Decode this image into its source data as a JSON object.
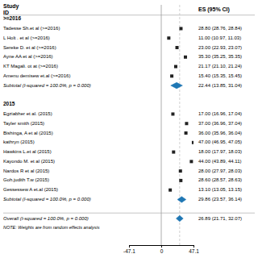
{
  "chart_data": {
    "type": "forest",
    "study_header": "Study\nID",
    "es_header": "ES (95% CI)",
    "xlim": [
      -47.1,
      47.1
    ],
    "xticks": [
      -47.1,
      0,
      47.1
    ],
    "reference_line": 0,
    "groups": [
      {
        "name": ">=2016",
        "studies": [
          {
            "name": "Tadesse Sh.et al (>=2016)",
            "es": 28.8,
            "ci_lo": 28.76,
            "ci_hi": 28.84,
            "es_label": "28.80 (28.76, 28.84)"
          },
          {
            "name": "L Holt . et al (>=2016)",
            "es": 11.0,
            "ci_lo": 10.97,
            "ci_hi": 11.03,
            "es_label": "11.00 (10.97, 11.03)"
          },
          {
            "name": "Sereke D. et al (>=2016)",
            "es": 23.0,
            "ci_lo": 22.93,
            "ci_hi": 23.07,
            "es_label": "23.00 (22.93, 23.07)"
          },
          {
            "name": "Ayne AA et al (>=2016)",
            "es": 35.3,
            "ci_lo": 35.25,
            "ci_hi": 35.35,
            "es_label": "35.30 (35.25, 35.35)"
          },
          {
            "name": "KT Magali. ot at (>=2016)",
            "es": 21.17,
            "ci_lo": 21.1,
            "ci_hi": 21.24,
            "es_label": "21.17 (21.10, 21.24)"
          },
          {
            "name": "Amenu demisew et.al (>=2016)",
            "es": 15.4,
            "ci_lo": 15.35,
            "ci_hi": 15.45,
            "es_label": "15.40 (15.35, 15.45)"
          }
        ],
        "subtotal": {
          "label": "Subtotal  (I-squared = 100.0%, p = 0.000)",
          "es": 22.44,
          "ci_lo": 13.85,
          "ci_hi": 31.04,
          "es_label": "22.44 (13.85, 31.04)"
        }
      },
      {
        "name": "2015",
        "studies": [
          {
            "name": "Egziabher et al. (2015)",
            "es": 17.0,
            "ci_lo": 16.96,
            "ci_hi": 17.04,
            "es_label": "17.00 (16.96, 17.04)"
          },
          {
            "name": "Tayler smith (2015)",
            "es": 37.0,
            "ci_lo": 36.96,
            "ci_hi": 37.04,
            "es_label": "37.00 (36.96, 37.04)"
          },
          {
            "name": "Bishinga, A et al (2015)",
            "es": 36.0,
            "ci_lo": 35.96,
            "ci_hi": 36.04,
            "es_label": "36.00 (35.96, 36.04)"
          },
          {
            "name": "kathryn (2015)",
            "es": 47.0,
            "ci_lo": 46.95,
            "ci_hi": 47.05,
            "es_label": "47.00 (46.95, 47.05)"
          },
          {
            "name": "Hawkins L.et al (2015)",
            "es": 18.0,
            "ci_lo": 17.97,
            "ci_hi": 18.03,
            "es_label": "18.00 (17.97, 18.03)"
          },
          {
            "name": "Kayondo M. et al (2015)",
            "es": 44.0,
            "ci_lo": 43.89,
            "ci_hi": 44.11,
            "es_label": "44.00 (43.89, 44.11)"
          },
          {
            "name": "Nardos R et al (2015)",
            "es": 28.0,
            "ci_lo": 27.97,
            "ci_hi": 28.03,
            "es_label": "28.00 (27.97, 28.03)"
          },
          {
            "name": "Goh.judith T.w (2015)",
            "es": 28.6,
            "ci_lo": 28.57,
            "ci_hi": 28.63,
            "es_label": "28.60 (28.57, 28.63)"
          },
          {
            "name": "Gessessew A et.al (2015)",
            "es": 13.1,
            "ci_lo": 13.05,
            "ci_hi": 13.15,
            "es_label": "13.10 (13.05, 13.15)"
          }
        ],
        "subtotal": {
          "label": "Subtotal  (I-squared = 100.0%, p = 0.000)",
          "es": 29.86,
          "ci_lo": 23.57,
          "ci_hi": 36.14,
          "es_label": "29.86 (23.57, 36.14)"
        }
      }
    ],
    "overall": {
      "label": "Overall  (I-squared = 100.0%, p = 0.000)",
      "es": 26.89,
      "ci_lo": 21.71,
      "ci_hi": 32.07,
      "es_label": "26.89 (21.71, 32.07)"
    },
    "note": "NOTE: Weights are from random effects analysis"
  }
}
